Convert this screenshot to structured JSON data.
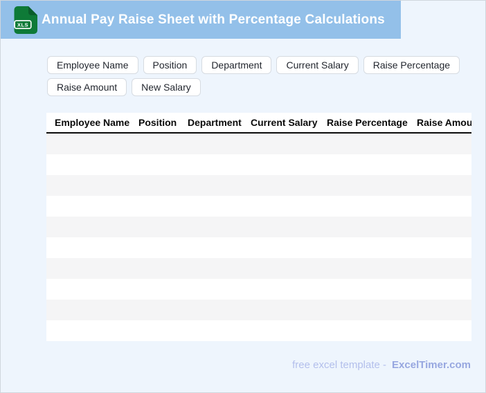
{
  "header": {
    "title": "Annual Pay Raise Sheet with Percentage Calculations",
    "badge": "XLS"
  },
  "tags": {
    "items": [
      "Employee Name",
      "Position",
      "Department",
      "Current Salary",
      "Raise Percentage",
      "Raise Amount",
      "New Salary"
    ]
  },
  "table": {
    "columns": [
      "Employee Name",
      "Position",
      "Department",
      "Current Salary",
      "Raise Percentage",
      "Raise Amount"
    ],
    "row_count": 10
  },
  "footer": {
    "text": "free excel template -",
    "brand": "ExcelTimer.com"
  },
  "colors": {
    "header_bar": "#93c0e9",
    "page_bg": "#eef5fd",
    "header_text": "#ffffff",
    "icon_green": "#0e7a37",
    "icon_green_dark": "#0a5e2c",
    "row_stripe": "#f5f5f6",
    "chip_border": "#d6dbe1",
    "chip_text": "#23272f",
    "table_text": "#0a0a0a",
    "footer_text": "#b3bfec",
    "footer_brand": "#97a7e0"
  }
}
